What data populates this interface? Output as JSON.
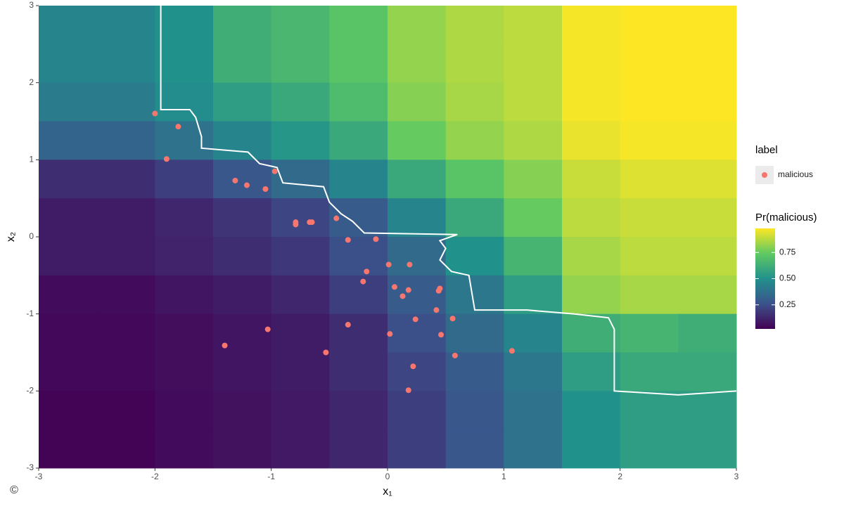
{
  "chart_data": {
    "type": "scatter",
    "xlabel": "x₁",
    "ylabel": "x₂",
    "xlim": [
      -3,
      3
    ],
    "ylim": [
      -3,
      3
    ],
    "xticks": [
      -3,
      -2,
      -1,
      0,
      1,
      2,
      3
    ],
    "yticks": [
      -3,
      -2,
      -1,
      0,
      1,
      2,
      3
    ],
    "legend_title": "label",
    "legend_position": "right",
    "x": [
      -2.0,
      -1.8,
      -1.9,
      -0.97,
      -1.31,
      -1.21,
      -1.05,
      -0.79,
      -0.79,
      -0.67,
      -0.65,
      -0.44,
      -0.34,
      -0.1,
      0.01,
      0.19,
      -0.18,
      -0.21,
      0.06,
      0.18,
      0.13,
      0.44,
      0.45,
      0.42,
      0.24,
      0.56,
      0.46,
      0.02,
      -0.34,
      -1.03,
      -1.4,
      -0.53,
      0.58,
      1.07,
      0.22,
      0.18
    ],
    "series": [
      {
        "name": "malicious",
        "color": "#f8766d",
        "values": [
          1.6,
          1.43,
          1.01,
          0.85,
          0.73,
          0.67,
          0.62,
          0.19,
          0.16,
          0.19,
          0.19,
          0.24,
          -0.04,
          -0.03,
          -0.36,
          -0.36,
          -0.45,
          -0.58,
          -0.65,
          -0.69,
          -0.77,
          -0.7,
          -0.67,
          -0.95,
          -1.07,
          -1.06,
          -1.27,
          -1.26,
          -1.14,
          -1.2,
          -1.41,
          -1.5,
          -1.54,
          -1.48,
          -1.68,
          -1.99
        ]
      }
    ],
    "heatmap": {
      "title": "Pr(malicious)",
      "clim": [
        0.02,
        0.98
      ],
      "cticks": [
        0.25,
        {
          "value": 0.5,
          "label": "0.50"
        },
        0.75
      ],
      "x_edges": [
        -3,
        -2.5,
        -2,
        -1.5,
        -1,
        -0.5,
        0,
        0.5,
        1,
        1.5,
        2,
        2.5,
        3
      ],
      "y_edges": [
        3,
        2.5,
        2,
        1.5,
        1,
        0.5,
        0,
        -0.5,
        -1,
        -1.5,
        -2,
        -2.5,
        -3
      ],
      "values": [
        [
          0.45,
          0.45,
          0.5,
          0.62,
          0.66,
          0.72,
          0.82,
          0.86,
          0.88,
          0.97,
          0.98,
          0.98
        ],
        [
          0.45,
          0.45,
          0.5,
          0.62,
          0.66,
          0.72,
          0.82,
          0.86,
          0.88,
          0.97,
          0.98,
          0.98
        ],
        [
          0.42,
          0.42,
          0.48,
          0.55,
          0.6,
          0.68,
          0.8,
          0.85,
          0.88,
          0.97,
          0.98,
          0.98
        ],
        [
          0.33,
          0.33,
          0.38,
          0.45,
          0.52,
          0.6,
          0.75,
          0.82,
          0.86,
          0.95,
          0.97,
          0.97
        ],
        [
          0.15,
          0.15,
          0.2,
          0.28,
          0.35,
          0.45,
          0.6,
          0.72,
          0.8,
          0.9,
          0.93,
          0.93
        ],
        [
          0.1,
          0.1,
          0.13,
          0.17,
          0.22,
          0.3,
          0.45,
          0.6,
          0.75,
          0.88,
          0.9,
          0.9
        ],
        [
          0.1,
          0.1,
          0.12,
          0.15,
          0.18,
          0.25,
          0.35,
          0.5,
          0.65,
          0.85,
          0.88,
          0.88
        ],
        [
          0.05,
          0.05,
          0.08,
          0.1,
          0.13,
          0.2,
          0.3,
          0.4,
          0.55,
          0.82,
          0.85,
          0.85
        ],
        [
          0.04,
          0.04,
          0.06,
          0.08,
          0.1,
          0.15,
          0.25,
          0.35,
          0.45,
          0.62,
          0.65,
          0.62
        ],
        [
          0.04,
          0.04,
          0.06,
          0.08,
          0.1,
          0.15,
          0.22,
          0.3,
          0.4,
          0.55,
          0.6,
          0.6
        ],
        [
          0.03,
          0.03,
          0.05,
          0.07,
          0.09,
          0.13,
          0.2,
          0.28,
          0.38,
          0.5,
          0.55,
          0.55
        ],
        [
          0.03,
          0.03,
          0.05,
          0.07,
          0.09,
          0.13,
          0.2,
          0.28,
          0.38,
          0.5,
          0.55,
          0.55
        ]
      ]
    },
    "boundary": {
      "x": [
        -1.95,
        -1.95,
        -1.7,
        -1.65,
        -1.6,
        -1.6,
        -1.2,
        -1.1,
        -0.95,
        -0.9,
        -0.55,
        -0.5,
        -0.4,
        -0.3,
        -0.2,
        0.6,
        0.45,
        0.5,
        0.45,
        0.55,
        0.7,
        0.75,
        1.2,
        1.6,
        1.9,
        1.95,
        1.95,
        2.5,
        3
      ],
      "y": [
        3,
        1.65,
        1.65,
        1.55,
        1.3,
        1.15,
        1.1,
        0.95,
        0.9,
        0.7,
        0.65,
        0.45,
        0.3,
        0.2,
        0.05,
        0.03,
        -0.05,
        -0.15,
        -0.3,
        -0.45,
        -0.5,
        -0.95,
        -0.95,
        -1.0,
        -1.05,
        -1.2,
        -2.0,
        -2.05,
        -2.0
      ]
    },
    "copyright": "©"
  }
}
